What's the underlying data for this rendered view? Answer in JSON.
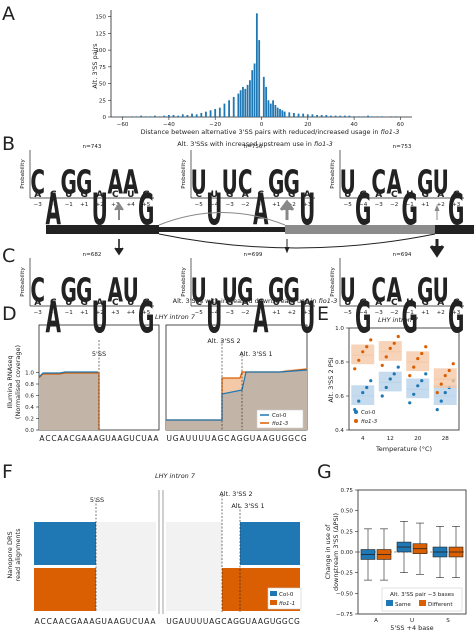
{
  "panel_letters": [
    "A",
    "B",
    "C",
    "D",
    "E",
    "F",
    "G"
  ],
  "panelA": {
    "ylabel": "Alt. 3'SS pairs",
    "xlabel_prefix": "Distance between alternative 3'SS pairs with reduced/increased usage in ",
    "xlabel_gene": "fio1-3",
    "yticks": [
      "0",
      "25",
      "50",
      "75",
      "100",
      "125",
      "150"
    ],
    "xticks": [
      "−60",
      "−40",
      "−20",
      "0",
      "20",
      "40",
      "60"
    ]
  },
  "panelB": {
    "title_prefix": "Alt. 3'SSs with increased upstream use in ",
    "title_gene": "fio1-3",
    "ylabel": "Probability",
    "logos": [
      {
        "n": "n=743",
        "letters": [
          "C",
          "A",
          "G",
          "G",
          "U",
          "A",
          "A",
          "G"
        ],
        "xticks": [
          "−3",
          "−2",
          "−1",
          "+1",
          "+2",
          "+3",
          "+4",
          "+5"
        ]
      },
      {
        "n": "n=756",
        "letters": [
          "U",
          "U",
          "U",
          "C",
          "A",
          "G",
          "G",
          "U"
        ],
        "xticks": [
          "−5",
          "−4",
          "−3",
          "−2",
          "−1",
          "+1",
          "+2",
          "+3"
        ]
      },
      {
        "n": "n=753",
        "letters": [
          "U",
          "G",
          "C",
          "A",
          "G",
          "G",
          "U",
          "G"
        ],
        "xticks": [
          "−5",
          "−4",
          "−3",
          "−2",
          "−1",
          "+1",
          "+2",
          "+3"
        ]
      }
    ]
  },
  "panelC": {
    "title_prefix": "Alt. 3'SSs with increased downstream use in ",
    "title_gene": "fio1-3",
    "ylabel": "Probability",
    "logos": [
      {
        "n": "n=682",
        "letters": [
          "C",
          "A",
          "G",
          "G",
          "U",
          "A",
          "U",
          "G"
        ],
        "xticks": [
          "−3",
          "−2",
          "−1",
          "+1",
          "+2",
          "+3",
          "+4",
          "+5"
        ]
      },
      {
        "n": "n=699",
        "letters": [
          "U",
          "U",
          "U",
          "G",
          "A",
          "G",
          "G",
          "U"
        ],
        "xticks": [
          "−5",
          "−4",
          "−3",
          "−2",
          "−1",
          "+1",
          "+2",
          "+3"
        ]
      },
      {
        "n": "n=694",
        "letters": [
          "U",
          "G",
          "C",
          "A",
          "G",
          "G",
          "U",
          "G"
        ],
        "xticks": [
          "−5",
          "−4",
          "−3",
          "−2",
          "−1",
          "+1",
          "+2",
          "+3"
        ]
      }
    ]
  },
  "panelD": {
    "title": "LHY intron 7",
    "ylabel": "Illumina RNAseq\n(Normalised coverage)",
    "yticks": [
      "0.0",
      "0.2",
      "0.4",
      "0.6",
      "0.8",
      "1.0"
    ],
    "labels": {
      "ss5": "5'SS",
      "alt2": "Alt. 3'SS 2",
      "alt1": "Alt. 3'SS 1"
    },
    "legend": [
      "Col-0",
      "fio1-3"
    ],
    "seq_left": "ACCAACGAAAGUAAGUCUAA",
    "seq_right": "UGAUUUUAGCAGGUAAGUGGCG"
  },
  "panelE": {
    "title": "LHY intron 7",
    "ylabel": "Alt. 3'SS 2 PSI",
    "xlabel": "Temperature (°C)",
    "xticks": [
      "4",
      "12",
      "20",
      "28"
    ],
    "yticks": [
      "0.4",
      "0.6",
      "0.8",
      "1.0"
    ],
    "legend": [
      "Col-0",
      "fio1-3"
    ]
  },
  "panelF": {
    "title": "LHY intron 7",
    "ylabel": "Nanopore DRS\nread alignments",
    "labels": {
      "ss5": "5'SS",
      "alt2": "Alt. 3'SS 2",
      "alt1": "Alt. 3'SS 1"
    },
    "legend": [
      "Col-0",
      "fio1-1"
    ],
    "seq_left": "ACCAACGAAAGUAAGUCUAA",
    "seq_right": "UGAUUUUAGCAGGUAAGUGGCG"
  },
  "panelG": {
    "ylabel": "Change in use of\ndownstream 3'SS (ΔPSI)",
    "xlabel": "5'SS +4 base",
    "yticks": [
      "−0.75",
      "−0.50",
      "−0.25",
      "0.00",
      "0.25",
      "0.50",
      "0.75"
    ],
    "xticks": [
      "A",
      "U",
      "S"
    ],
    "legend_title": "Alt. 3'SS pair −3 bases",
    "legend": [
      "Same",
      "Different"
    ]
  },
  "colors": {
    "blue": "#1f77b4",
    "orange": "#d95f02",
    "A": "#2ca02c",
    "C": "#1f77b4",
    "G": "#f5a800",
    "U": "#e8e000",
    "grey": "#8c8c8c"
  },
  "chart_data": [
    {
      "type": "bar",
      "panel": "A",
      "xlabel": "Distance between alternative 3'SS pairs with reduced/increased usage in fio1-3",
      "ylabel": "Alt. 3'SS pairs",
      "x": [
        -60,
        -58,
        -56,
        -54,
        -52,
        -50,
        -48,
        -46,
        -44,
        -42,
        -40,
        -38,
        -36,
        -34,
        -32,
        -30,
        -28,
        -26,
        -24,
        -22,
        -20,
        -18,
        -16,
        -14,
        -12,
        -10,
        -9,
        -8,
        -7,
        -6,
        -5,
        -4,
        -3,
        -2,
        -1,
        1,
        2,
        3,
        4,
        5,
        6,
        7,
        8,
        9,
        10,
        12,
        14,
        16,
        18,
        20,
        22,
        24,
        26,
        28,
        30,
        32,
        34,
        36,
        38,
        40,
        42,
        44,
        46,
        48,
        50,
        52,
        54,
        56,
        58,
        60
      ],
      "values": [
        1,
        0,
        1,
        1,
        2,
        1,
        1,
        2,
        1,
        2,
        3,
        3,
        2,
        4,
        3,
        5,
        4,
        6,
        8,
        10,
        12,
        14,
        20,
        25,
        30,
        35,
        40,
        45,
        42,
        48,
        55,
        70,
        80,
        155,
        115,
        60,
        45,
        25,
        20,
        25,
        18,
        14,
        12,
        10,
        8,
        7,
        6,
        5,
        5,
        4,
        4,
        3,
        3,
        3,
        2,
        2,
        2,
        2,
        2,
        1,
        1,
        1,
        2,
        1,
        1,
        1,
        0,
        1,
        1,
        0
      ],
      "ylim": [
        0,
        160
      ]
    },
    {
      "type": "box",
      "panel": "E",
      "categories": [
        "4",
        "12",
        "20",
        "28"
      ],
      "series": [
        {
          "name": "Col-0",
          "values": [
            0.6,
            0.68,
            0.64,
            0.6
          ]
        },
        {
          "name": "fio1-3",
          "values": [
            0.84,
            0.86,
            0.8,
            0.7
          ]
        }
      ],
      "ylim": [
        0.4,
        1.0
      ]
    },
    {
      "type": "box",
      "panel": "G",
      "categories": [
        "A",
        "U",
        "S"
      ],
      "series": [
        {
          "name": "Same",
          "values": [
            -0.03,
            0.06,
            0.0
          ]
        },
        {
          "name": "Different",
          "values": [
            -0.03,
            0.04,
            0.0
          ]
        }
      ],
      "ylim": [
        -0.75,
        0.75
      ]
    }
  ]
}
